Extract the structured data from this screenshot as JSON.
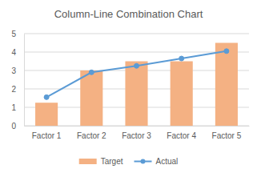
{
  "chart_data": {
    "type": "bar",
    "title": "Column-Line Combination Chart",
    "categories": [
      "Factor 1",
      "Factor 2",
      "Factor 3",
      "Factor 4",
      "Factor 5"
    ],
    "series": [
      {
        "name": "Target",
        "type": "bar",
        "color": "#f4b183",
        "values": [
          1.25,
          3.0,
          3.5,
          3.5,
          4.5
        ]
      },
      {
        "name": "Actual",
        "type": "line",
        "color": "#5b9bd5",
        "marker": "circle",
        "values": [
          1.55,
          2.9,
          3.25,
          3.65,
          4.05
        ]
      }
    ],
    "ylim": [
      0,
      5
    ],
    "yticks": [
      0,
      1,
      2,
      3,
      4,
      5
    ],
    "grid": true,
    "legend": "bottom"
  }
}
